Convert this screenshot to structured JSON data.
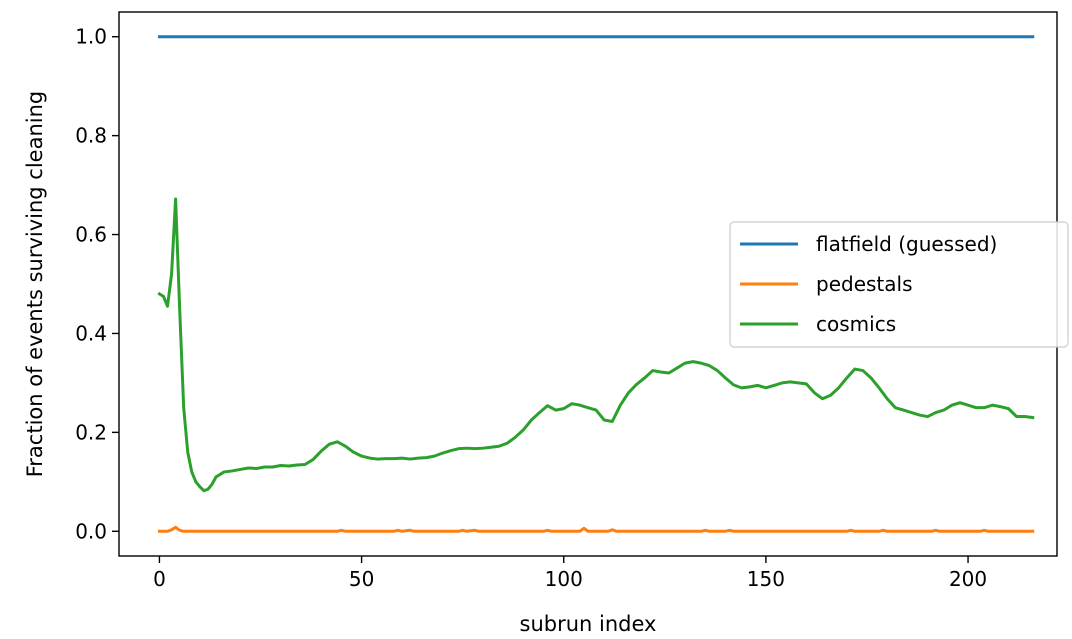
{
  "chart_data": {
    "type": "line",
    "title": "",
    "xlabel": "subrun index",
    "ylabel": "Fraction of events surviving cleaning",
    "xlim": [
      -10,
      222
    ],
    "ylim": [
      -0.05,
      1.05
    ],
    "xticks": [
      0,
      50,
      100,
      150,
      200
    ],
    "xtick_labels": [
      "0",
      "50",
      "100",
      "150",
      "200"
    ],
    "yticks": [
      0.0,
      0.2,
      0.4,
      0.6,
      0.8,
      1.0
    ],
    "ytick_labels": [
      "0.0",
      "0.2",
      "0.4",
      "0.6",
      "0.8",
      "1.0"
    ],
    "grid": false,
    "legend_position": "center-right",
    "series": [
      {
        "name": "flatfield (guessed)",
        "color": "#1f77b4",
        "points": [
          [
            0,
            1.0
          ],
          [
            216,
            1.0
          ]
        ]
      },
      {
        "name": "pedestals",
        "color": "#ff7f0e",
        "points": [
          [
            0,
            0.0
          ],
          [
            2,
            0.0
          ],
          [
            3,
            0.003
          ],
          [
            4,
            0.008
          ],
          [
            5,
            0.002
          ],
          [
            6,
            0.0
          ],
          [
            44,
            0.0
          ],
          [
            45,
            0.002
          ],
          [
            46,
            0.0
          ],
          [
            58,
            0.0
          ],
          [
            59,
            0.002
          ],
          [
            60,
            0.0
          ],
          [
            62,
            0.002
          ],
          [
            63,
            0.0
          ],
          [
            74,
            0.0
          ],
          [
            75,
            0.002
          ],
          [
            76,
            0.0
          ],
          [
            78,
            0.002
          ],
          [
            79,
            0.0
          ],
          [
            95,
            0.0
          ],
          [
            96,
            0.002
          ],
          [
            97,
            0.0
          ],
          [
            104,
            0.0
          ],
          [
            105,
            0.006
          ],
          [
            106,
            0.0
          ],
          [
            111,
            0.0
          ],
          [
            112,
            0.003
          ],
          [
            113,
            0.0
          ],
          [
            134,
            0.0
          ],
          [
            135,
            0.002
          ],
          [
            136,
            0.0
          ],
          [
            140,
            0.0
          ],
          [
            141,
            0.002
          ],
          [
            142,
            0.0
          ],
          [
            170,
            0.0
          ],
          [
            171,
            0.002
          ],
          [
            172,
            0.0
          ],
          [
            178,
            0.0
          ],
          [
            179,
            0.002
          ],
          [
            180,
            0.0
          ],
          [
            191,
            0.0
          ],
          [
            192,
            0.002
          ],
          [
            193,
            0.0
          ],
          [
            203,
            0.0
          ],
          [
            204,
            0.002
          ],
          [
            205,
            0.0
          ],
          [
            216,
            0.0
          ]
        ]
      },
      {
        "name": "cosmics",
        "color": "#2ca02c",
        "points": [
          [
            0,
            0.48
          ],
          [
            1,
            0.475
          ],
          [
            2,
            0.455
          ],
          [
            3,
            0.52
          ],
          [
            4,
            0.672
          ],
          [
            5,
            0.45
          ],
          [
            6,
            0.25
          ],
          [
            7,
            0.16
          ],
          [
            8,
            0.12
          ],
          [
            9,
            0.1
          ],
          [
            10,
            0.09
          ],
          [
            11,
            0.082
          ],
          [
            12,
            0.085
          ],
          [
            13,
            0.095
          ],
          [
            14,
            0.11
          ],
          [
            16,
            0.12
          ],
          [
            18,
            0.122
          ],
          [
            20,
            0.125
          ],
          [
            22,
            0.128
          ],
          [
            24,
            0.127
          ],
          [
            26,
            0.13
          ],
          [
            28,
            0.13
          ],
          [
            30,
            0.133
          ],
          [
            32,
            0.132
          ],
          [
            34,
            0.134
          ],
          [
            36,
            0.135
          ],
          [
            38,
            0.145
          ],
          [
            40,
            0.162
          ],
          [
            42,
            0.176
          ],
          [
            44,
            0.181
          ],
          [
            46,
            0.172
          ],
          [
            48,
            0.16
          ],
          [
            50,
            0.152
          ],
          [
            52,
            0.148
          ],
          [
            54,
            0.146
          ],
          [
            56,
            0.147
          ],
          [
            58,
            0.147
          ],
          [
            60,
            0.148
          ],
          [
            62,
            0.146
          ],
          [
            64,
            0.148
          ],
          [
            66,
            0.149
          ],
          [
            68,
            0.152
          ],
          [
            70,
            0.158
          ],
          [
            72,
            0.163
          ],
          [
            74,
            0.167
          ],
          [
            76,
            0.168
          ],
          [
            78,
            0.167
          ],
          [
            80,
            0.168
          ],
          [
            82,
            0.17
          ],
          [
            84,
            0.172
          ],
          [
            86,
            0.178
          ],
          [
            88,
            0.19
          ],
          [
            90,
            0.205
          ],
          [
            92,
            0.225
          ],
          [
            94,
            0.24
          ],
          [
            96,
            0.254
          ],
          [
            98,
            0.245
          ],
          [
            100,
            0.248
          ],
          [
            102,
            0.258
          ],
          [
            104,
            0.255
          ],
          [
            106,
            0.25
          ],
          [
            108,
            0.245
          ],
          [
            110,
            0.225
          ],
          [
            112,
            0.222
          ],
          [
            114,
            0.255
          ],
          [
            116,
            0.28
          ],
          [
            118,
            0.297
          ],
          [
            120,
            0.31
          ],
          [
            122,
            0.325
          ],
          [
            124,
            0.322
          ],
          [
            126,
            0.32
          ],
          [
            128,
            0.33
          ],
          [
            130,
            0.34
          ],
          [
            132,
            0.343
          ],
          [
            134,
            0.34
          ],
          [
            136,
            0.335
          ],
          [
            138,
            0.325
          ],
          [
            140,
            0.31
          ],
          [
            142,
            0.296
          ],
          [
            144,
            0.29
          ],
          [
            146,
            0.292
          ],
          [
            148,
            0.295
          ],
          [
            150,
            0.29
          ],
          [
            152,
            0.295
          ],
          [
            154,
            0.3
          ],
          [
            156,
            0.302
          ],
          [
            158,
            0.3
          ],
          [
            160,
            0.298
          ],
          [
            162,
            0.28
          ],
          [
            164,
            0.268
          ],
          [
            166,
            0.275
          ],
          [
            168,
            0.29
          ],
          [
            170,
            0.31
          ],
          [
            172,
            0.328
          ],
          [
            174,
            0.325
          ],
          [
            176,
            0.31
          ],
          [
            178,
            0.29
          ],
          [
            180,
            0.268
          ],
          [
            182,
            0.25
          ],
          [
            184,
            0.245
          ],
          [
            186,
            0.24
          ],
          [
            188,
            0.235
          ],
          [
            190,
            0.232
          ],
          [
            192,
            0.24
          ],
          [
            194,
            0.245
          ],
          [
            196,
            0.255
          ],
          [
            198,
            0.26
          ],
          [
            200,
            0.255
          ],
          [
            202,
            0.25
          ],
          [
            204,
            0.25
          ],
          [
            206,
            0.255
          ],
          [
            208,
            0.252
          ],
          [
            210,
            0.248
          ],
          [
            212,
            0.232
          ],
          [
            214,
            0.232
          ],
          [
            216,
            0.23
          ]
        ]
      }
    ]
  }
}
